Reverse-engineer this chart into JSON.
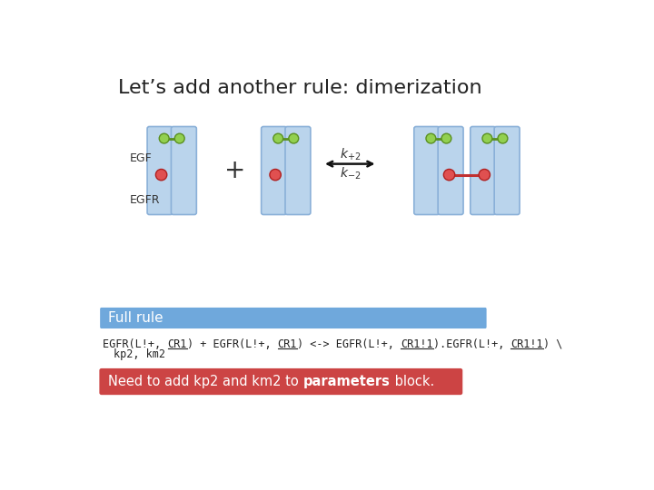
{
  "title": "Let’s add another rule: dimerization",
  "title_fontsize": 16,
  "title_color": "#222222",
  "bg_color": "#ffffff",
  "receptor_color": "#bad4ec",
  "receptor_border": "#8ab0d8",
  "egf_color": "#92d050",
  "egf_border": "#5a9020",
  "cr_color": "#e05050",
  "cr_border": "#b02020",
  "bond_color": "#5a9020",
  "cr_bond_color": "#c03030",
  "arrow_color": "#111111",
  "full_rule_bg": "#6fa8dc",
  "full_rule_text": "Full rule",
  "full_rule_text_color": "#ffffff",
  "notice_bg": "#cc4444",
  "notice_text_plain": "Need to add kp2 and km2 to ",
  "notice_text_bold": "parameters",
  "notice_text_end": " block.",
  "notice_text_color": "#ffffff",
  "egf_label": "EGF",
  "egfr_label": "EGFR"
}
